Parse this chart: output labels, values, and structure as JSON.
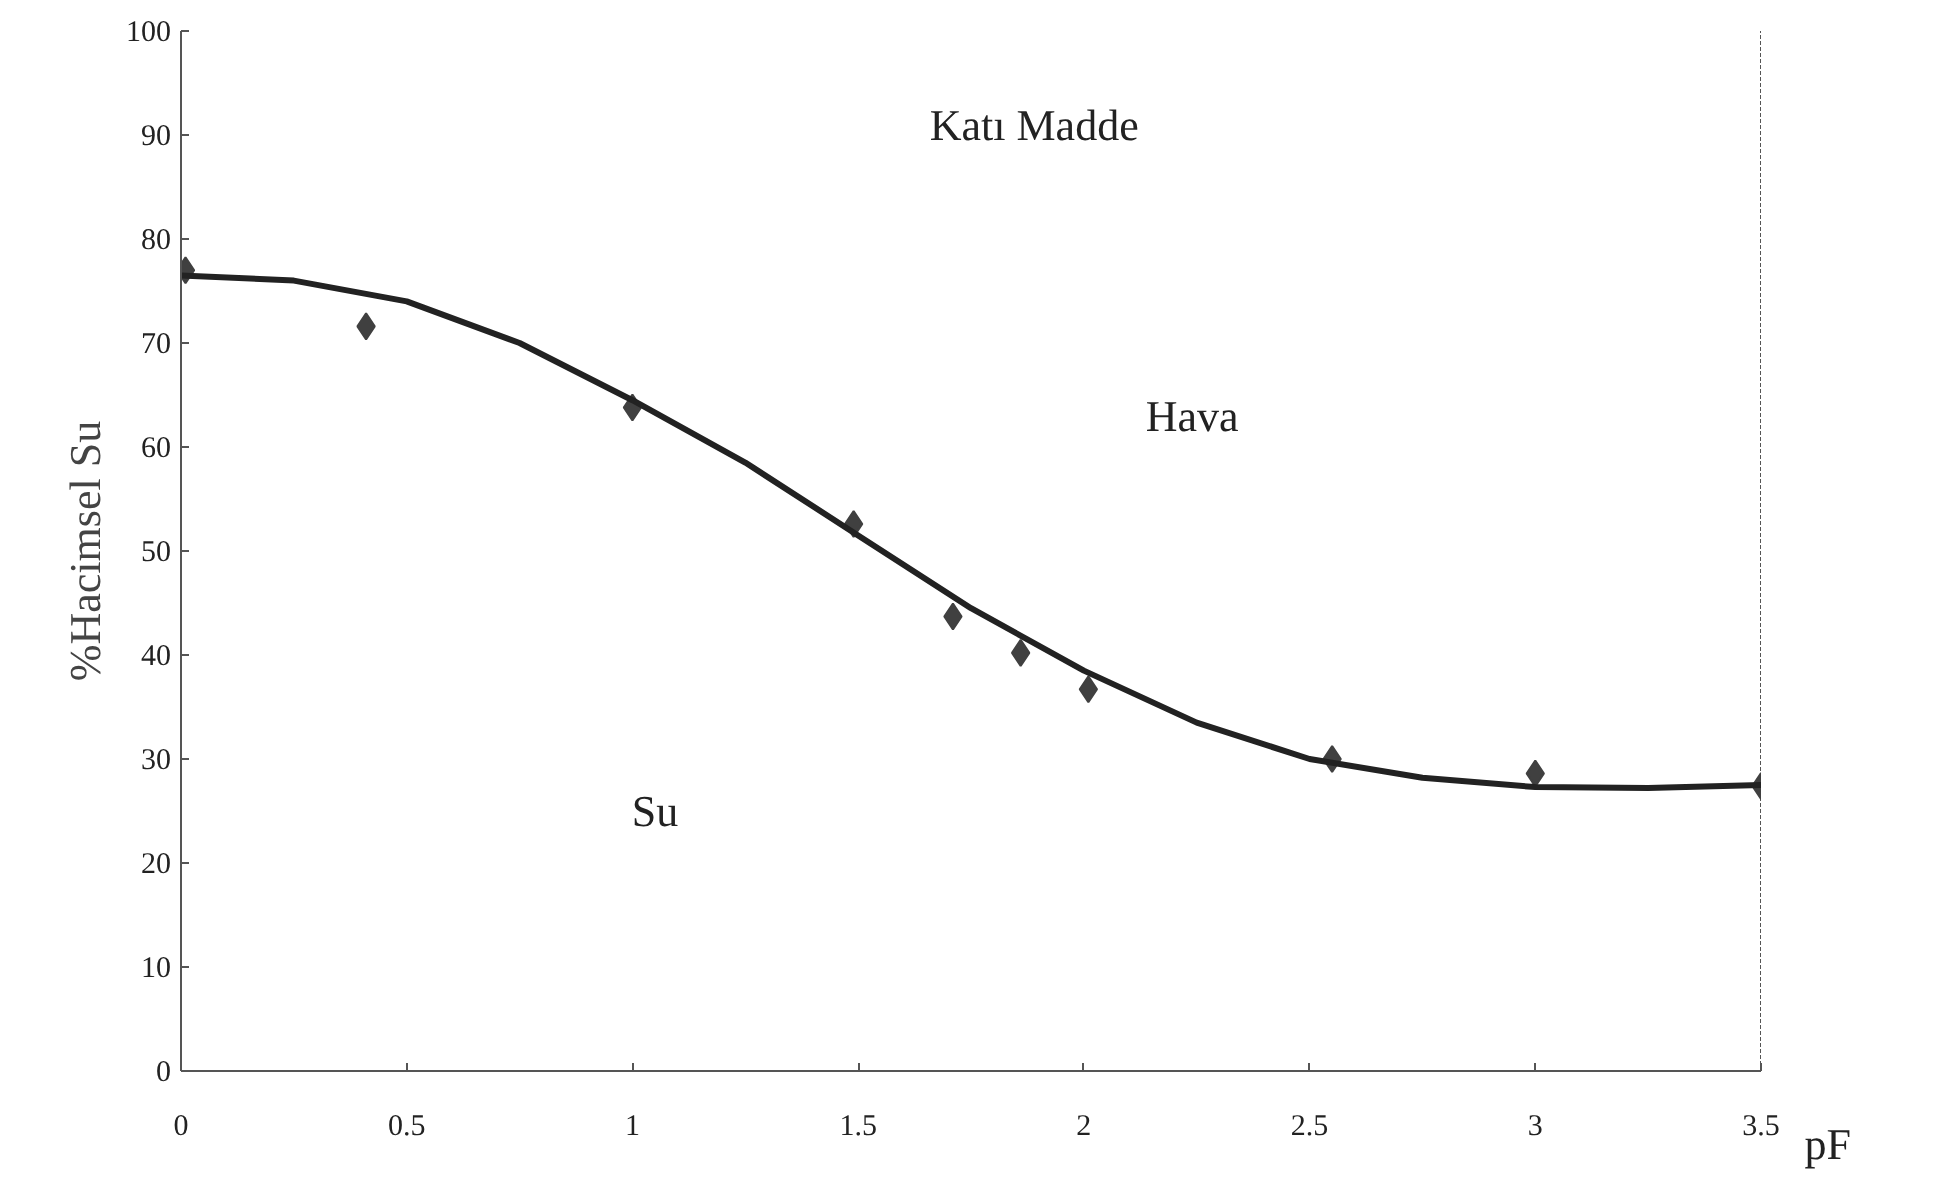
{
  "chart_data": {
    "type": "scatter",
    "xlabel": "pF",
    "ylabel": "%Hacimsel Su",
    "xlim": [
      0,
      3.5
    ],
    "ylim": [
      0,
      100
    ],
    "xticks": [
      0,
      0.5,
      1,
      1.5,
      2,
      2.5,
      3,
      3.5
    ],
    "yticks": [
      0,
      10,
      20,
      30,
      40,
      50,
      60,
      70,
      80,
      90,
      100
    ],
    "grid": false,
    "series": [
      {
        "color": "#404040",
        "marker": "diamond",
        "x": [
          0.01,
          0.41,
          1.0,
          1.49,
          1.71,
          1.86,
          2.01,
          2.55,
          3.0,
          3.5
        ],
        "values": [
          77,
          71.6,
          63.8,
          52.6,
          43.7,
          40.2,
          36.7,
          30,
          28.6,
          27.4
        ]
      },
      {
        "type": "line",
        "color": "#222222",
        "line_style": "solid",
        "x": [
          0,
          0.25,
          0.5,
          0.75,
          1,
          1.25,
          1.5,
          1.75,
          2,
          2.25,
          2.5,
          2.75,
          3,
          3.25,
          3.5
        ],
        "values": [
          76.5,
          76,
          74,
          70,
          64.5,
          58.5,
          51.5,
          44.5,
          38.5,
          33.5,
          30,
          28.2,
          27.3,
          27.2,
          27.5
        ]
      }
    ],
    "annotations": [
      "Katı Madde",
      "Hava",
      "Su"
    ]
  }
}
